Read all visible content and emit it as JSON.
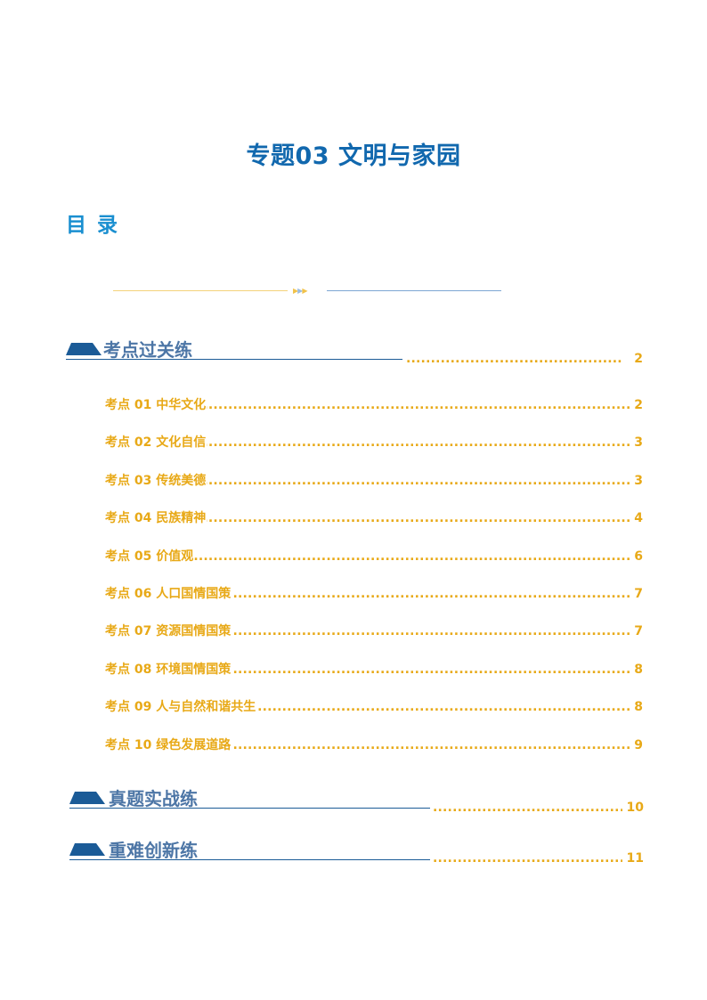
{
  "document": {
    "title": "专题03  文明与家园",
    "toc_heading": "目录"
  },
  "colors": {
    "title": "#1168ae",
    "toc_heading": "#1a8fd0",
    "section_label": "#4d76a6",
    "section_badge": "#1b5b97",
    "entry_text": "#e8a917"
  },
  "sections": [
    {
      "label": "考点过关练",
      "page": "2",
      "entries": [
        {
          "label": "考点 01  中华文化",
          "page": "2"
        },
        {
          "label": "考点 02  文化自信",
          "page": "3"
        },
        {
          "label": "考点 03  传统美德",
          "page": "3"
        },
        {
          "label": "考点 04  民族精神",
          "page": "4"
        },
        {
          "label": "考点 05  价值观",
          "page": "6"
        },
        {
          "label": "考点 06  人口国情国策",
          "page": "7"
        },
        {
          "label": "考点 07  资源国情国策",
          "page": "7"
        },
        {
          "label": "考点 08  环境国情国策",
          "page": "8"
        },
        {
          "label": "考点 09  人与自然和谐共生",
          "page": "8"
        },
        {
          "label": "考点 10  绿色发展道路",
          "page": "9"
        }
      ]
    },
    {
      "label": "真题实战练",
      "page": "10",
      "entries": []
    },
    {
      "label": "重难创新练",
      "page": "11",
      "entries": []
    }
  ]
}
